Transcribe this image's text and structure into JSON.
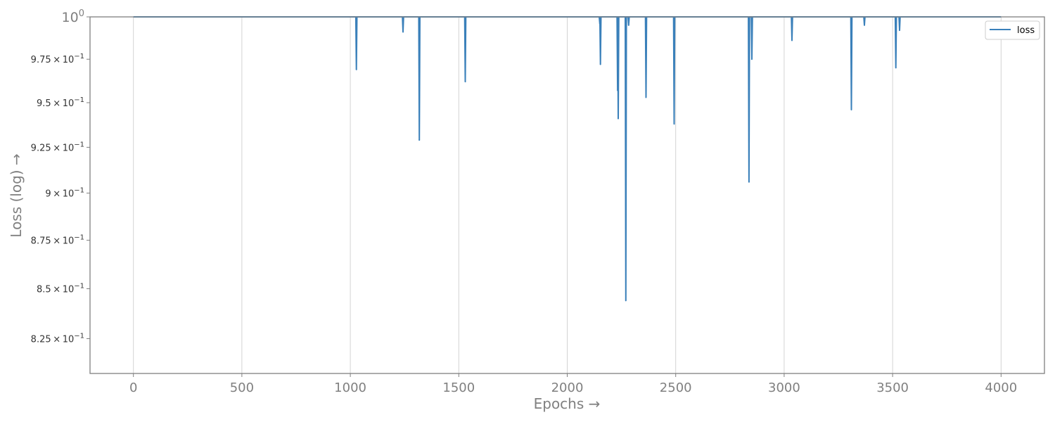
{
  "chart_data": {
    "type": "line",
    "xlabel": "Epochs →",
    "ylabel": "Loss (log) →",
    "xlim": [
      -200,
      4200
    ],
    "ylim": [
      0.808,
      1.0
    ],
    "y_scale": "log",
    "grid": "x-only",
    "legend_position": "top-right",
    "x_ticks": [
      0,
      500,
      1000,
      1500,
      2000,
      2500,
      3000,
      3500,
      4000
    ],
    "x_tick_labels": [
      "0",
      "500",
      "1000",
      "1500",
      "2000",
      "2500",
      "3000",
      "3500",
      "4000"
    ],
    "y_ticks": [
      1.0,
      0.975,
      0.95,
      0.925,
      0.9,
      0.875,
      0.85,
      0.825
    ],
    "y_tick_labels": [
      {
        "base": "10",
        "exp": "0"
      },
      {
        "mant": "9.75",
        "base": "10",
        "exp": "−1"
      },
      {
        "mant": "9.5",
        "base": "10",
        "exp": "−1"
      },
      {
        "mant": "9.25",
        "base": "10",
        "exp": "−1"
      },
      {
        "mant": "9",
        "base": "10",
        "exp": "−1"
      },
      {
        "mant": "8.75",
        "base": "10",
        "exp": "−1"
      },
      {
        "mant": "8.5",
        "base": "10",
        "exp": "−1"
      },
      {
        "mant": "8.25",
        "base": "10",
        "exp": "−1"
      }
    ],
    "series": [
      {
        "name": "loss",
        "color": "#3a80ba",
        "baseline": 1.0,
        "x_range": [
          0,
          4000
        ],
        "dips": [
          {
            "x": 1028,
            "y": 0.969
          },
          {
            "x": 1243,
            "y": 0.991
          },
          {
            "x": 1318,
            "y": 0.929
          },
          {
            "x": 1530,
            "y": 0.962
          },
          {
            "x": 2150,
            "y": 0.996
          },
          {
            "x": 2153,
            "y": 0.972
          },
          {
            "x": 2232,
            "y": 0.957
          },
          {
            "x": 2235,
            "y": 0.941
          },
          {
            "x": 2270,
            "y": 0.844
          },
          {
            "x": 2283,
            "y": 0.995
          },
          {
            "x": 2363,
            "y": 0.953
          },
          {
            "x": 2493,
            "y": 0.938
          },
          {
            "x": 2838,
            "y": 0.906
          },
          {
            "x": 2851,
            "y": 0.975
          },
          {
            "x": 3036,
            "y": 0.986
          },
          {
            "x": 3310,
            "y": 0.946
          },
          {
            "x": 3370,
            "y": 0.995
          },
          {
            "x": 3515,
            "y": 0.97
          },
          {
            "x": 3532,
            "y": 0.992
          }
        ]
      }
    ]
  }
}
